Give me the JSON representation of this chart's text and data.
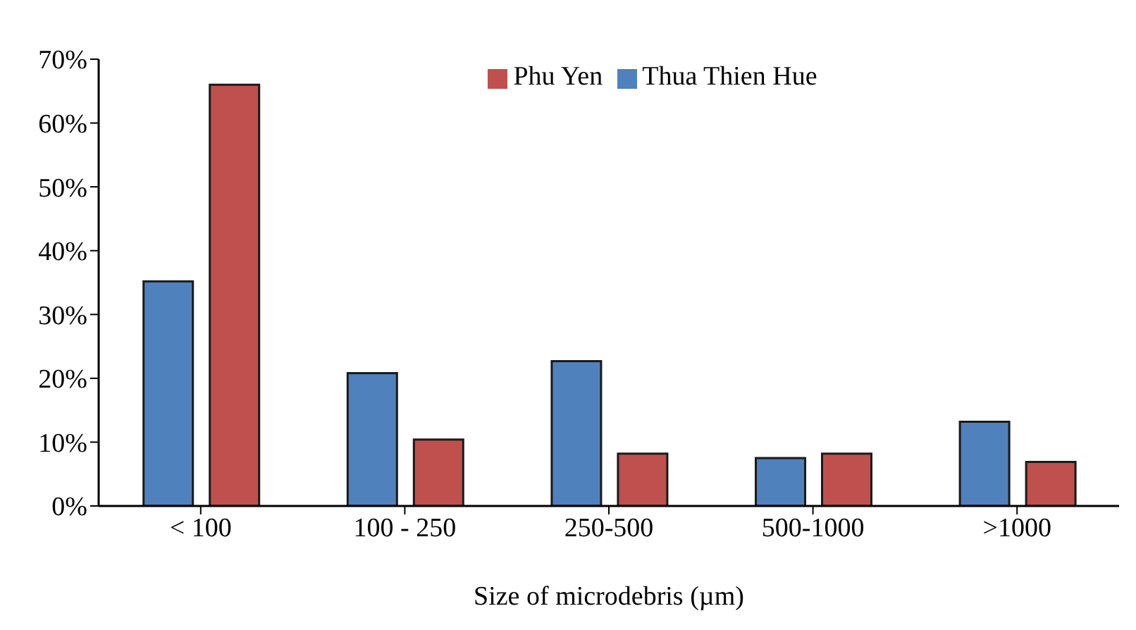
{
  "chart_data": {
    "type": "bar",
    "xlabel": "Size of microdebris (µm)",
    "categories": [
      "< 100",
      "100 - 250",
      "250-500",
      "500-1000",
      ">1000"
    ],
    "series": [
      {
        "name": "Thua Thien Hue",
        "color": "#4f81bd",
        "values": [
          35.2,
          20.8,
          22.7,
          7.5,
          13.2
        ]
      },
      {
        "name": "Phu Yen",
        "color": "#c0504d",
        "values": [
          66,
          10.4,
          8.2,
          8.2,
          6.9
        ]
      }
    ],
    "ylim": [
      0,
      70
    ],
    "yticks": [
      {
        "value": 0,
        "label": "0%"
      },
      {
        "value": 10,
        "label": "10%"
      },
      {
        "value": 20,
        "label": "20%"
      },
      {
        "value": 30,
        "label": "30%"
      },
      {
        "value": 40,
        "label": "40%"
      },
      {
        "value": 50,
        "label": "50%"
      },
      {
        "value": 60,
        "label": "60%"
      },
      {
        "value": 70,
        "label": "70%"
      }
    ],
    "grid": false,
    "legend": "top"
  }
}
